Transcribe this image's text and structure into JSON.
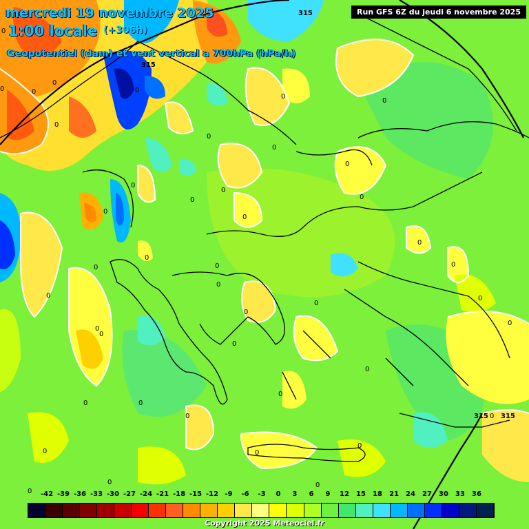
{
  "header": {
    "date_line": "mercredi 19 novembre 2025",
    "time_line": "1:00 locale",
    "offset": "(+306h)",
    "field_line": "Geopotentiel (dam) et vent vertical a 700hPa (hPa/h)"
  },
  "run_info": "Run GFS 6Z du jeudi 6 novembre 2025",
  "copyright": "Copyright 2025 Meteociel.fr",
  "isoheight_label": "315",
  "zero_label": "0",
  "scale": {
    "values": [
      "-42",
      "-39",
      "-36",
      "-33",
      "-30",
      "-27",
      "-24",
      "-21",
      "-18",
      "-15",
      "-12",
      "-9",
      "-6",
      "-3",
      "0",
      "3",
      "6",
      "9",
      "12",
      "15",
      "18",
      "21",
      "24",
      "27",
      "30",
      "33",
      "36"
    ],
    "colors": [
      "#020230",
      "#3a0000",
      "#5a0000",
      "#800000",
      "#a00000",
      "#c80000",
      "#f00000",
      "#ff3000",
      "#ff6020",
      "#ff8a00",
      "#ffb000",
      "#ffd000",
      "#ffe84a",
      "#ffff80",
      "#ffff00",
      "#e0ff00",
      "#b0ff20",
      "#70f040",
      "#40e870",
      "#50f0c0",
      "#40e0ff",
      "#00b8ff",
      "#0070ff",
      "#0030ff",
      "#0000c8",
      "#001880",
      "#002050"
    ]
  },
  "colors": {
    "background_green": "#7cf03a",
    "title_cyan": "#00c8ff",
    "coast_line": "#000000",
    "contour_white": "#ffffff"
  }
}
